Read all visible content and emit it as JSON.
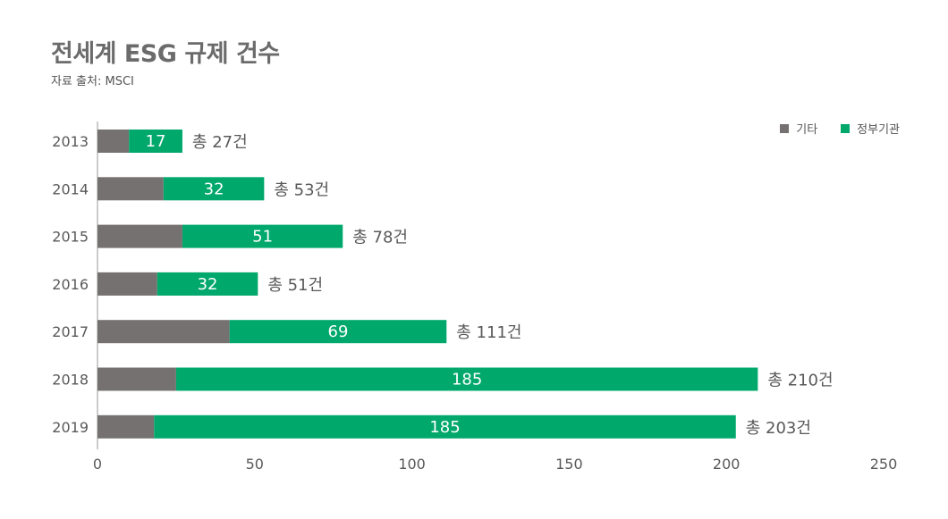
{
  "title": "전세계 ESG 규제 건수",
  "subtitle": "자료 출처: MSCI",
  "colors": {
    "other": "#767171",
    "government": "#00a86b",
    "text": "#595959"
  },
  "chart_data": {
    "type": "bar",
    "orientation": "horizontal",
    "stacked": true,
    "categories": [
      "2013",
      "2014",
      "2015",
      "2016",
      "2017",
      "2018",
      "2019"
    ],
    "series": [
      {
        "name": "기타",
        "values": [
          10,
          21,
          27,
          19,
          42,
          25,
          18
        ]
      },
      {
        "name": "정부기관",
        "values": [
          17,
          32,
          51,
          32,
          69,
          185,
          185
        ]
      }
    ],
    "segment_labels": [
      "17",
      "32",
      "51",
      "32",
      "69",
      "185",
      "185"
    ],
    "total_labels": [
      "총 27건",
      "총 53건",
      "총 78건",
      "총 51건",
      "총 111건",
      "총 210건",
      "총 203건"
    ],
    "xlim": [
      0,
      250
    ],
    "xticks": [
      "0",
      "50",
      "100",
      "150",
      "200",
      "250"
    ],
    "legend_position": "top-right",
    "grid": false
  }
}
